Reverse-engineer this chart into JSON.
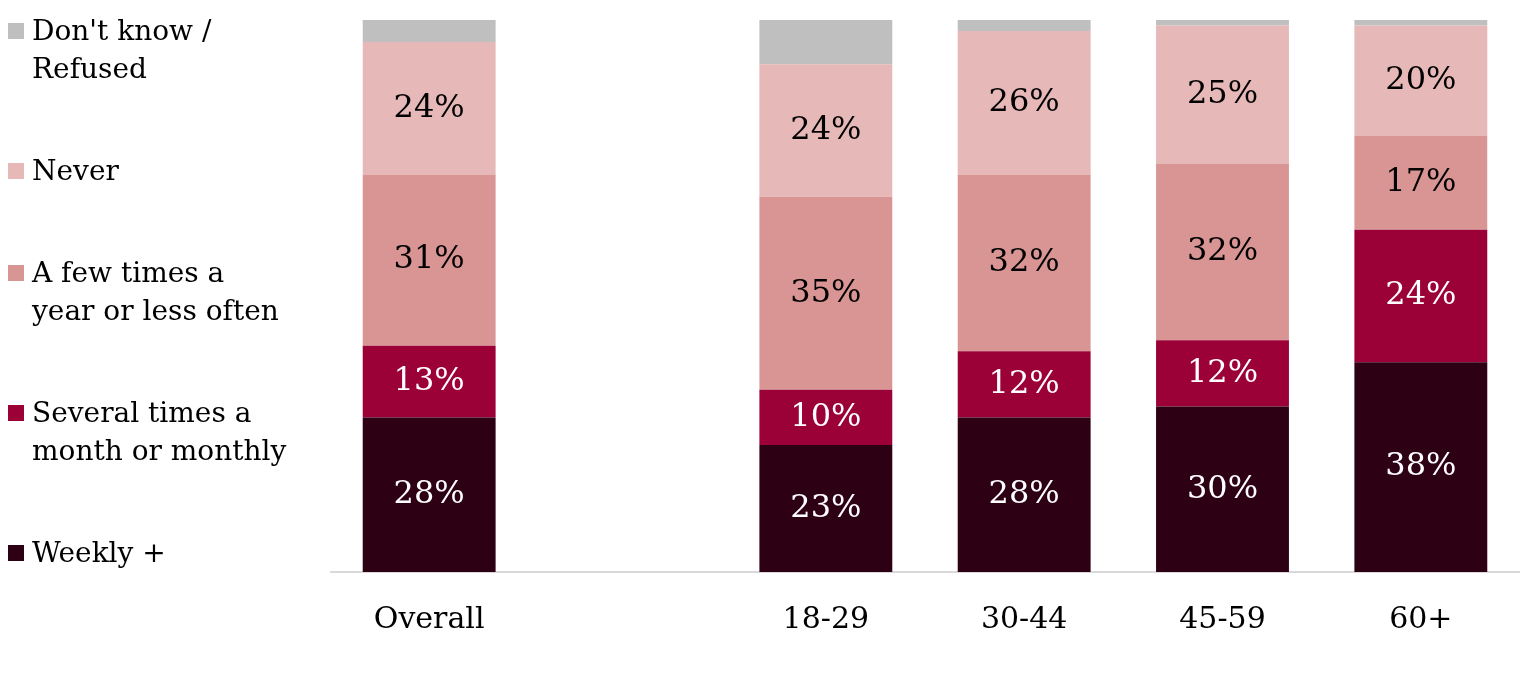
{
  "chart_data": {
    "type": "bar",
    "stacked": true,
    "legend": "left",
    "grid": false,
    "tick_labels": "x",
    "categories": [
      "Overall",
      null,
      "18-29",
      "30-44",
      "45-59",
      "60+"
    ],
    "series": [
      {
        "name": "Weekly +",
        "color": "#2e0014",
        "values": [
          28,
          null,
          23,
          28,
          30,
          38
        ],
        "value_labels": [
          "28%",
          null,
          "23%",
          "28%",
          "30%",
          "38%"
        ]
      },
      {
        "name": "Several times a month or monthly",
        "color": "#9b0036",
        "values": [
          13,
          null,
          10,
          12,
          12,
          24
        ],
        "value_labels": [
          "13%",
          null,
          "10%",
          "12%",
          "12%",
          "24%"
        ]
      },
      {
        "name": "A few times a year or less often",
        "color": "#d99594",
        "values": [
          31,
          null,
          35,
          32,
          32,
          17
        ],
        "value_labels": [
          "31%",
          null,
          "35%",
          "32%",
          "32%",
          "17%"
        ]
      },
      {
        "name": "Never",
        "color": "#e6b8b7",
        "values": [
          24,
          null,
          24,
          26,
          25,
          20
        ],
        "value_labels": [
          "24%",
          null,
          "24%",
          "26%",
          "25%",
          "20%"
        ]
      },
      {
        "name": "Don't know / Refused",
        "color": "#bfbfbf",
        "values": [
          4,
          null,
          8,
          2,
          1,
          1
        ],
        "value_labels": [
          null,
          null,
          null,
          null,
          null,
          null
        ]
      }
    ]
  }
}
